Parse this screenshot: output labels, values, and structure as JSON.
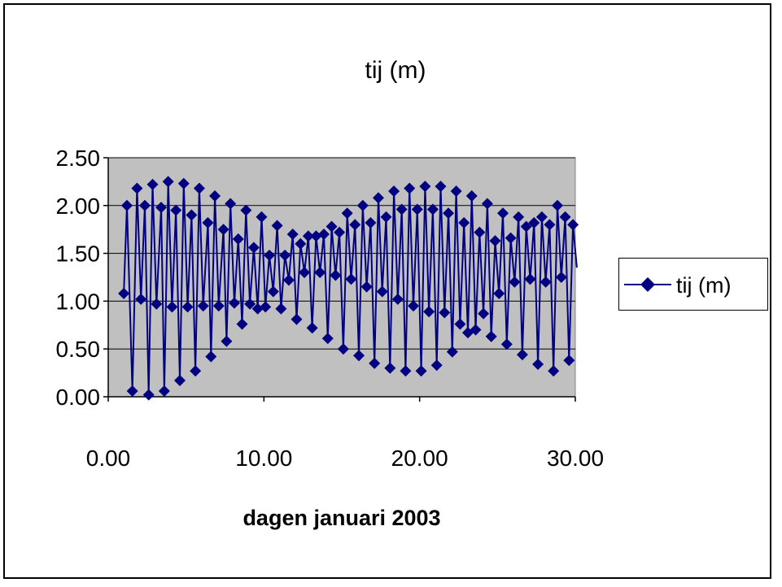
{
  "chart_data": {
    "type": "line",
    "title": "tij (m)",
    "xlabel": "dagen januari 2003",
    "ylabel": "",
    "xlim": [
      0,
      30
    ],
    "ylim": [
      0,
      2.5
    ],
    "x_ticks": [
      "0.00",
      "10.00",
      "20.00",
      "30.00"
    ],
    "y_ticks": [
      "0.00",
      "0.50",
      "1.00",
      "1.50",
      "2.00",
      "2.50"
    ],
    "grid": true,
    "legend": "right",
    "plot_bg": "#c0c0c0",
    "series": [
      {
        "name": "tij (m)",
        "color": "#000080",
        "marker": "diamond",
        "x": [
          1.0,
          1.2,
          1.55,
          1.85,
          2.1,
          2.35,
          2.6,
          2.85,
          3.1,
          3.4,
          3.6,
          3.85,
          4.1,
          4.35,
          4.6,
          4.85,
          5.1,
          5.35,
          5.6,
          5.85,
          6.1,
          6.4,
          6.6,
          6.85,
          7.1,
          7.4,
          7.6,
          7.85,
          8.1,
          8.35,
          8.6,
          8.85,
          9.1,
          9.35,
          9.6,
          9.85,
          10.1,
          10.35,
          10.6,
          10.85,
          11.1,
          11.35,
          11.6,
          11.85,
          12.1,
          12.35,
          12.6,
          12.85,
          13.1,
          13.35,
          13.6,
          13.85,
          14.1,
          14.35,
          14.6,
          14.85,
          15.1,
          15.35,
          15.6,
          15.85,
          16.1,
          16.35,
          16.6,
          16.85,
          17.1,
          17.35,
          17.6,
          17.85,
          18.1,
          18.35,
          18.6,
          18.85,
          19.1,
          19.35,
          19.6,
          19.85,
          20.1,
          20.35,
          20.6,
          20.85,
          21.1,
          21.35,
          21.6,
          21.85,
          22.1,
          22.35,
          22.6,
          22.85,
          23.1,
          23.35,
          23.6,
          23.85,
          24.1,
          24.35,
          24.6,
          24.85,
          25.1,
          25.35,
          25.6,
          25.85,
          26.1,
          26.35,
          26.6,
          26.85,
          27.1,
          27.35,
          27.6,
          27.85,
          28.1,
          28.35,
          28.6,
          28.85,
          29.1,
          29.35,
          29.6,
          29.85,
          30.1
        ],
        "y": [
          1.08,
          2.0,
          0.06,
          2.18,
          1.02,
          2.0,
          0.02,
          2.22,
          0.97,
          1.98,
          0.06,
          2.25,
          0.94,
          1.95,
          0.17,
          2.23,
          0.94,
          1.9,
          0.27,
          2.18,
          0.95,
          1.82,
          0.42,
          2.1,
          0.95,
          1.75,
          0.58,
          2.02,
          0.98,
          1.65,
          0.76,
          1.95,
          0.97,
          1.56,
          0.92,
          1.88,
          0.94,
          1.48,
          1.1,
          1.79,
          0.92,
          1.48,
          1.22,
          1.7,
          0.81,
          1.6,
          1.3,
          1.68,
          0.72,
          1.68,
          1.3,
          1.7,
          0.61,
          1.78,
          1.27,
          1.72,
          0.5,
          1.92,
          1.23,
          1.8,
          0.43,
          2.0,
          1.15,
          1.82,
          0.35,
          2.08,
          1.1,
          1.88,
          0.3,
          2.15,
          1.02,
          1.96,
          0.27,
          2.18,
          0.95,
          1.96,
          0.27,
          2.2,
          0.89,
          1.96,
          0.33,
          2.2,
          0.88,
          1.92,
          0.47,
          2.15,
          0.76,
          1.82,
          0.67,
          2.1,
          0.7,
          1.72,
          0.87,
          2.02,
          0.63,
          1.63,
          1.08,
          1.92,
          0.55,
          1.66,
          1.2,
          1.88,
          0.44,
          1.78,
          1.23,
          1.82,
          0.34,
          1.88,
          1.2,
          1.8,
          0.27,
          2.0,
          1.25,
          1.88,
          0.38,
          1.8,
          1.35
        ]
      }
    ]
  }
}
